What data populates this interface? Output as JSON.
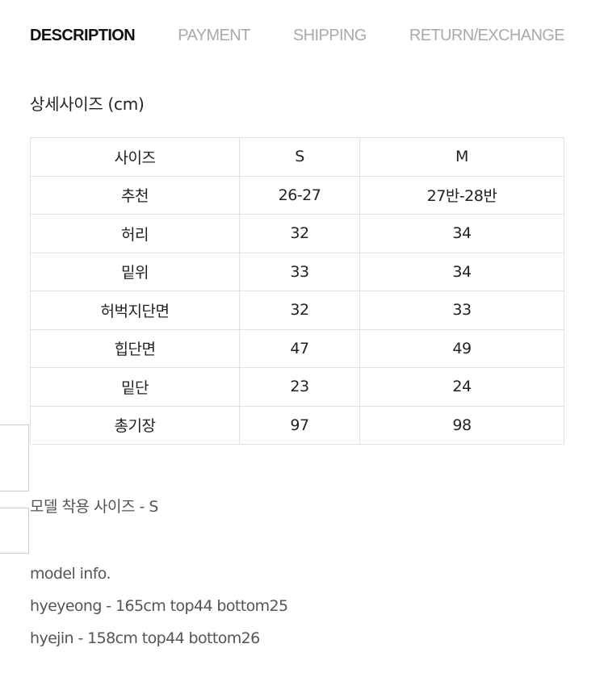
{
  "tabs": [
    {
      "label": "DESCRIPTION",
      "active": true
    },
    {
      "label": "PAYMENT",
      "active": false
    },
    {
      "label": "SHIPPING",
      "active": false
    },
    {
      "label": "RETURN/EXCHANGE",
      "active": false
    }
  ],
  "section_title": "상세사이즈 (cm)",
  "size_table": {
    "header": [
      "사이즈",
      "S",
      "M"
    ],
    "rows": [
      [
        "추천",
        "26-27",
        "27반-28반"
      ],
      [
        "허리",
        "32",
        "34"
      ],
      [
        "밑위",
        "33",
        "34"
      ],
      [
        "허벅지단면",
        "32",
        "33"
      ],
      [
        "힙단면",
        "47",
        "49"
      ],
      [
        "밑단",
        "23",
        "24"
      ],
      [
        "총기장",
        "97",
        "98"
      ]
    ]
  },
  "fit_note": "모델 착용 사이즈 - S",
  "model_info": {
    "title": "model info.",
    "lines": [
      "hyeyeong - 165cm top44 bottom25",
      "hyejin - 158cm top44 bottom26"
    ]
  },
  "colors": {
    "active_tab": "#111111",
    "inactive_tab": "#aaaaaa",
    "table_border": "#e2e2e2",
    "muted_text": "#555555"
  }
}
